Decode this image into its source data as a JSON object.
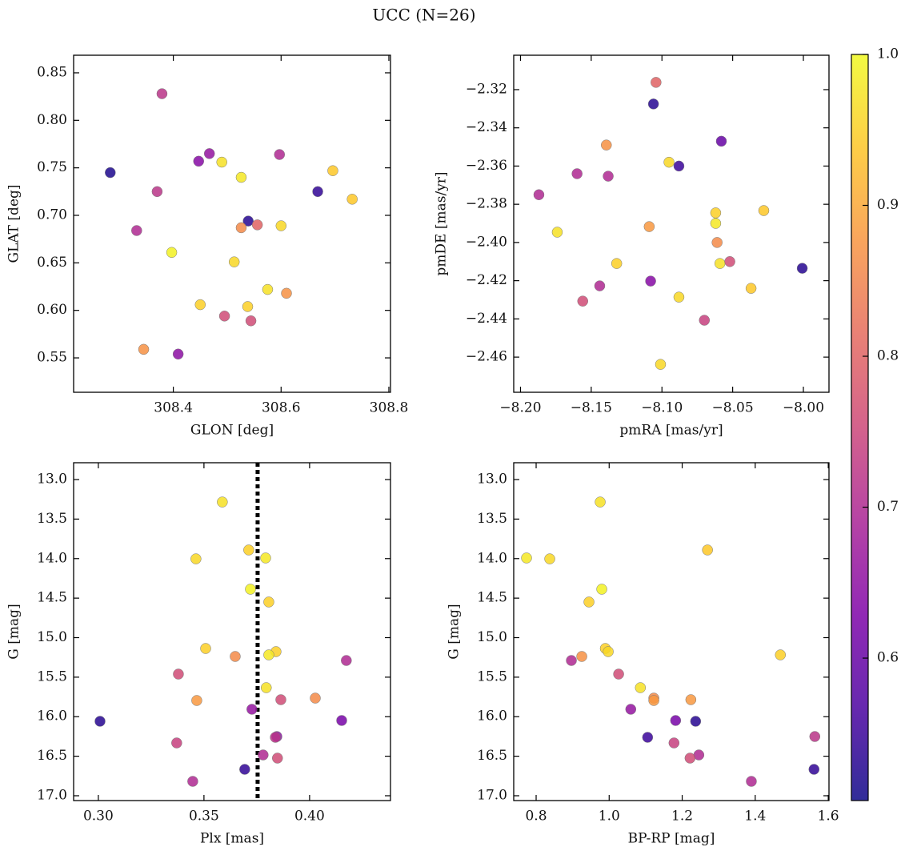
{
  "title": "UCC (N=26)",
  "colorbar": {
    "colormap": "plasma",
    "lim": [
      0.5056,
      1.0
    ],
    "ticks": [
      0.6,
      0.7,
      0.8,
      0.9,
      {
        "value": 1,
        "label": "1.0"
      }
    ]
  },
  "chart_data": [
    {
      "type": "scatter",
      "xlabel": "GLON [deg]",
      "ylabel": "GLAT [deg]",
      "xlim": [
        308.215,
        308.803
      ],
      "ylim": [
        0.5138,
        0.8685
      ],
      "xticks": [
        308.4,
        308.6,
        308.8
      ],
      "yticks": [
        0.55,
        {
          "value": 0.6,
          "label": "0.60"
        },
        0.65,
        {
          "value": 0.7,
          "label": "0.70"
        },
        0.75,
        {
          "value": 0.8,
          "label": "0.80"
        },
        0.85
      ],
      "x": [
        308.283,
        308.379,
        308.467,
        308.447,
        308.49,
        308.526,
        308.37,
        308.332,
        308.539,
        308.526,
        308.556,
        308.6,
        308.597,
        308.696,
        308.732,
        308.668,
        308.397,
        308.513,
        308.575,
        308.61,
        308.45,
        308.538,
        308.495,
        308.544,
        308.345,
        308.409
      ],
      "y": [
        0.745,
        0.828,
        0.765,
        0.757,
        0.756,
        0.74,
        0.725,
        0.684,
        0.694,
        0.687,
        0.69,
        0.689,
        0.764,
        0.747,
        0.717,
        0.725,
        0.661,
        0.651,
        0.622,
        0.618,
        0.606,
        0.604,
        0.594,
        0.589,
        0.559,
        0.554
      ],
      "c": [
        0.52,
        0.72,
        0.66,
        0.64,
        0.97,
        0.98,
        0.72,
        0.7,
        0.53,
        0.86,
        0.8,
        0.96,
        0.7,
        0.94,
        0.94,
        0.54,
        0.99,
        0.96,
        0.97,
        0.87,
        0.95,
        0.95,
        0.76,
        0.76,
        0.87,
        0.65
      ]
    },
    {
      "type": "scatter",
      "xlabel": "pmRA [mas/yr]",
      "ylabel": "pmDE [mas/yr]",
      "xlim": [
        -8.2048,
        -7.9819
      ],
      "ylim": [
        -2.4784,
        -2.302
      ],
      "xticks": [
        {
          "value": -8.2,
          "label": "−8.20"
        },
        {
          "value": -8.15,
          "label": "−8.15"
        },
        {
          "value": -8.1,
          "label": "−8.10"
        },
        {
          "value": -8.05,
          "label": "−8.05"
        },
        {
          "value": -8.0,
          "label": "−8.00"
        }
      ],
      "yticks": [
        {
          "value": -2.46,
          "label": "−2.46"
        },
        {
          "value": -2.44,
          "label": "−2.44"
        },
        {
          "value": -2.42,
          "label": "−2.42"
        },
        {
          "value": -2.4,
          "label": "−2.40"
        },
        {
          "value": -2.38,
          "label": "−2.38"
        },
        {
          "value": -2.36,
          "label": "−2.36"
        },
        {
          "value": -2.34,
          "label": "−2.34"
        },
        {
          "value": -2.32,
          "label": "−2.32"
        }
      ],
      "x": [
        -8.1042,
        -8.106,
        -8.058,
        -8.1393,
        -8.095,
        -8.088,
        -8.16,
        -8.138,
        -8.187,
        -8.174,
        -8.062,
        -8.062,
        -8.028,
        -8.109,
        -8.061,
        -8.132,
        -8.059,
        -8.052,
        -8.0008,
        -8.108,
        -8.144,
        -8.156,
        -8.088,
        -8.037,
        -8.07,
        -8.101
      ],
      "y": [
        -2.3162,
        -2.3275,
        -2.347,
        -2.349,
        -2.358,
        -2.36,
        -2.364,
        -2.3653,
        -2.375,
        -2.3946,
        -2.3845,
        -2.39,
        -2.3833,
        -2.3917,
        -2.4,
        -2.411,
        -2.411,
        -2.41,
        -2.4135,
        -2.4202,
        -2.4227,
        -2.4307,
        -2.4286,
        -2.424,
        -2.4407,
        -2.4638
      ],
      "c": [
        0.8,
        0.53,
        0.6,
        0.87,
        0.96,
        0.55,
        0.7,
        0.7,
        0.7,
        0.97,
        0.95,
        0.98,
        0.94,
        0.88,
        0.86,
        0.95,
        0.97,
        0.76,
        0.53,
        0.64,
        0.7,
        0.76,
        0.96,
        0.94,
        0.74,
        0.96
      ]
    },
    {
      "type": "scatter",
      "xlabel": "Plx [mas]",
      "ylabel": "G [mag]",
      "xlim": [
        0.2883,
        0.4383
      ],
      "ylim": [
        17.061,
        12.787
      ],
      "vline": 0.3754,
      "xticks": [
        {
          "value": 0.3,
          "label": "0.30"
        },
        0.35,
        {
          "value": 0.4,
          "label": "0.40"
        }
      ],
      "yticks": [
        {
          "value": 13,
          "label": "13.0"
        },
        13.5,
        {
          "value": 14,
          "label": "14.0"
        },
        14.5,
        {
          "value": 15,
          "label": "15.0"
        },
        15.5,
        {
          "value": 16,
          "label": "16.0"
        },
        16.5,
        {
          "value": 17,
          "label": "17.0"
        }
      ],
      "x": [
        0.3587,
        0.3462,
        0.3712,
        0.3792,
        0.372,
        0.3807,
        0.3508,
        0.3648,
        0.3841,
        0.3807,
        0.4174,
        0.3795,
        0.3379,
        0.3466,
        0.4027,
        0.3864,
        0.3727,
        0.3008,
        0.4152,
        0.3845,
        0.3838,
        0.3371,
        0.378,
        0.3848,
        0.3693,
        0.3447
      ],
      "y": [
        13.284,
        14.003,
        13.891,
        13.992,
        14.387,
        14.549,
        15.137,
        15.238,
        15.177,
        15.218,
        15.289,
        15.633,
        15.461,
        15.795,
        15.765,
        15.785,
        15.906,
        16.058,
        16.048,
        16.251,
        16.261,
        16.332,
        16.484,
        16.524,
        16.666,
        16.818
      ],
      "c": [
        0.97,
        0.96,
        0.95,
        0.98,
        0.99,
        0.95,
        0.95,
        0.86,
        0.95,
        0.98,
        0.7,
        0.97,
        0.76,
        0.88,
        0.86,
        0.76,
        0.66,
        0.53,
        0.62,
        0.65,
        0.72,
        0.74,
        0.7,
        0.76,
        0.54,
        0.7
      ]
    },
    {
      "type": "scatter",
      "xlabel": "BP-RP [mag]",
      "ylabel": "G [mag]",
      "xlim": [
        0.7386,
        1.602
      ],
      "ylim": [
        17.061,
        12.787
      ],
      "xticks": [
        0.8,
        {
          "value": 1,
          "label": "1.0"
        },
        1.2,
        1.4,
        1.6
      ],
      "yticks": [
        {
          "value": 13,
          "label": "13.0"
        },
        13.5,
        {
          "value": 14,
          "label": "14.0"
        },
        14.5,
        {
          "value": 15,
          "label": "15.0"
        },
        15.5,
        {
          "value": 16,
          "label": "16.0"
        },
        16.5,
        {
          "value": 17,
          "label": "17.0"
        }
      ],
      "x": [
        0.9754,
        0.7737,
        0.8373,
        1.2693,
        0.9798,
        0.9447,
        0.9895,
        0.9974,
        0.925,
        0.8965,
        1.4689,
        1.0855,
        1.0259,
        1.1223,
        1.1223,
        1.2237,
        1.0592,
        1.182,
        1.2368,
        1.1053,
        1.5632,
        1.1776,
        1.2456,
        1.2215,
        1.561,
        1.3894
      ],
      "y": [
        13.284,
        13.992,
        14.003,
        13.891,
        14.387,
        14.549,
        15.137,
        15.177,
        15.238,
        15.289,
        15.218,
        15.633,
        15.461,
        15.765,
        15.795,
        15.785,
        15.906,
        16.048,
        16.058,
        16.261,
        16.251,
        16.332,
        16.484,
        16.524,
        16.666,
        16.818
      ],
      "c": [
        0.97,
        0.98,
        0.96,
        0.94,
        0.99,
        0.95,
        0.95,
        0.96,
        0.87,
        0.7,
        0.95,
        0.97,
        0.76,
        0.86,
        0.88,
        0.88,
        0.66,
        0.62,
        0.53,
        0.55,
        0.72,
        0.74,
        0.7,
        0.76,
        0.54,
        0.7
      ]
    }
  ]
}
